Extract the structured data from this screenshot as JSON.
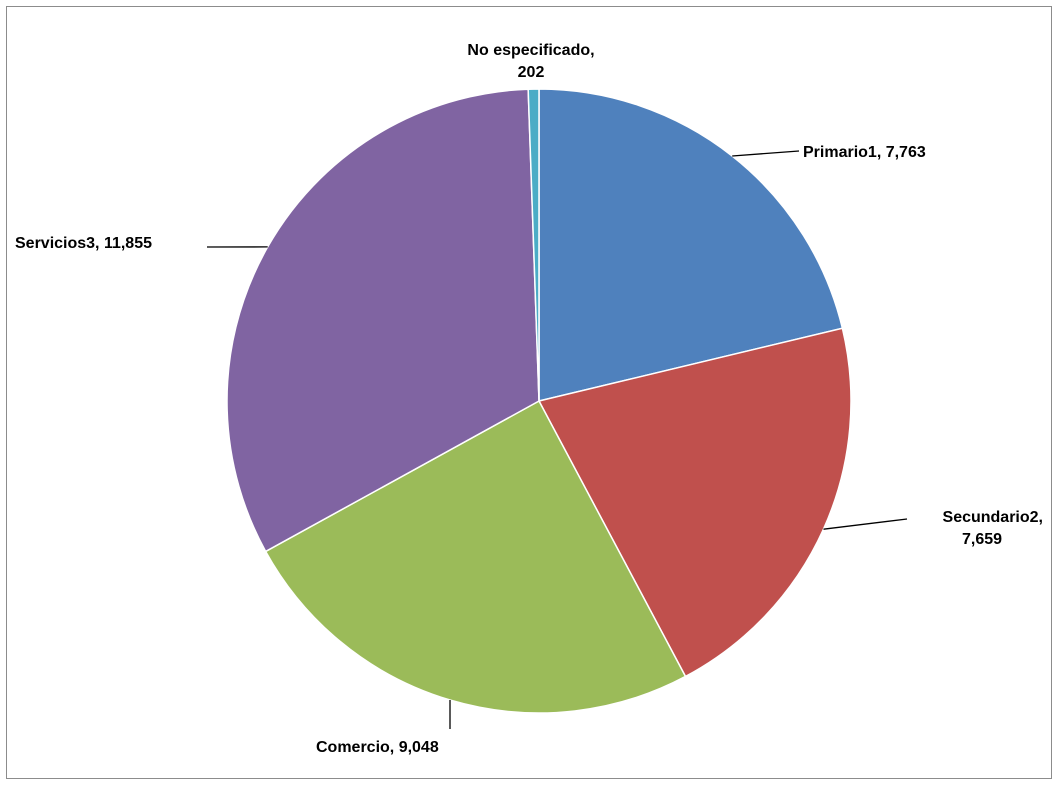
{
  "chart_data": {
    "type": "pie",
    "title": "",
    "slices": [
      {
        "label": "Primario1",
        "value": 7763,
        "display": "Primario1,  7,763",
        "color": "#4F81BD"
      },
      {
        "label": "Secundario2",
        "value": 7659,
        "display_line1": "Secundario2,",
        "display_line2": "7,659",
        "color": "#C0504D"
      },
      {
        "label": "Comercio",
        "value": 9048,
        "display": "Comercio,  9,048",
        "color": "#9BBB59"
      },
      {
        "label": "Servicios3",
        "value": 11855,
        "display": "Servicios3,  11,855",
        "color": "#8064A2"
      },
      {
        "label": "No especificado",
        "value": 202,
        "display_line1": "No especificado,",
        "display_line2": "202",
        "color": "#4BACC6"
      }
    ],
    "start_angle_deg": 0,
    "direction": "clockwise",
    "legend": "none",
    "data_labels": "outside with leader lines"
  }
}
